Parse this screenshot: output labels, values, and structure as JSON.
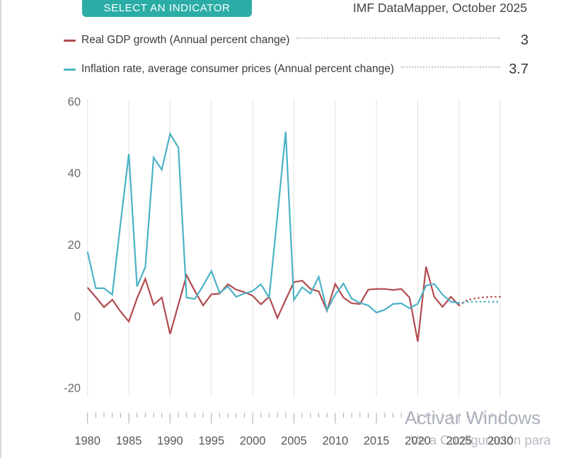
{
  "header": {
    "select_indicator_button": "SELECT AN INDICATOR",
    "datamapper_label": "IMF DataMapper, October 2025",
    "button_color": "#2bada6"
  },
  "legend": [
    {
      "label": "Real GDP growth (Annual percent change)",
      "value": "3",
      "color": "#b24a4e"
    },
    {
      "label": "Inflation rate, average consumer prices (Annual percent change)",
      "value": "3.7",
      "color": "#4bb2c6"
    }
  ],
  "watermark": {
    "line1": "Activar Windows",
    "line2": "Ve a Configuración para"
  },
  "chart_data": {
    "type": "line",
    "title": "",
    "xlabel": "",
    "ylabel": "",
    "x": [
      1980,
      1981,
      1982,
      1983,
      1984,
      1985,
      1986,
      1987,
      1988,
      1989,
      1990,
      1991,
      1992,
      1993,
      1994,
      1995,
      1996,
      1997,
      1998,
      1999,
      2000,
      2001,
      2002,
      2003,
      2004,
      2005,
      2006,
      2007,
      2008,
      2009,
      2010,
      2011,
      2012,
      2013,
      2014,
      2015,
      2016,
      2017,
      2018,
      2019,
      2020,
      2021,
      2022,
      2023,
      2024,
      2025,
      2026,
      2027,
      2028,
      2029,
      2030
    ],
    "series": [
      {
        "name": "Real GDP growth (Annual percent change)",
        "color": "#b24a4e",
        "values": [
          8.0,
          5.3,
          2.5,
          4.6,
          1.3,
          -1.5,
          5.0,
          10.4,
          3.2,
          5.2,
          -5.0,
          3.2,
          11.4,
          7.0,
          3.0,
          6.1,
          6.3,
          8.9,
          7.4,
          6.7,
          5.7,
          3.3,
          5.4,
          -0.5,
          4.6,
          9.5,
          9.9,
          7.6,
          6.9,
          1.5,
          9.0,
          5.2,
          3.6,
          3.4,
          7.4,
          7.6,
          7.6,
          7.3,
          7.6,
          5.2,
          -7.1,
          13.8,
          5.4,
          2.6,
          5.4,
          3.0,
          4.5,
          5.0,
          5.3,
          5.4,
          5.4
        ]
      },
      {
        "name": "Inflation rate, average consumer prices (Annual percent change)",
        "color": "#4bb2c6",
        "values": [
          18.0,
          7.8,
          7.8,
          6.0,
          26.0,
          45.3,
          8.3,
          13.7,
          44.3,
          40.9,
          50.9,
          47.1,
          5.2,
          4.8,
          8.5,
          12.6,
          6.5,
          8.3,
          5.4,
          6.3,
          7.0,
          8.9,
          5.2,
          28.0,
          51.5,
          4.5,
          8.1,
          6.3,
          11.0,
          1.6,
          6.0,
          9.1,
          4.9,
          3.7,
          3.0,
          1.0,
          1.8,
          3.4,
          3.6,
          2.2,
          3.5,
          8.5,
          9.0,
          6.0,
          4.0,
          3.7,
          4.0,
          4.0,
          4.0,
          4.0,
          4.0
        ]
      }
    ],
    "projection_start_year": 2025,
    "ylim": [
      -20,
      60
    ],
    "yticks": [
      60,
      40,
      20,
      0,
      -20
    ],
    "xticks": [
      1980,
      1985,
      1990,
      1995,
      2000,
      2005,
      2010,
      2015,
      2020,
      2025,
      2030
    ],
    "grid": "vertical-only",
    "legend_position": "top"
  }
}
